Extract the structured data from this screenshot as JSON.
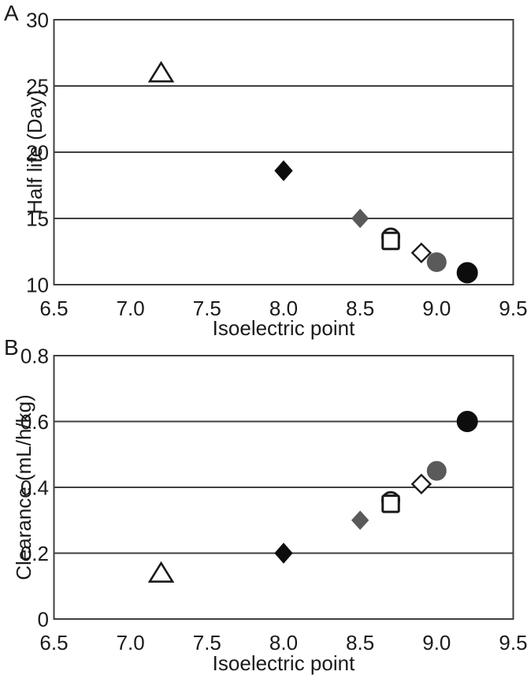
{
  "colors": {
    "black": "#0d0d0d",
    "gray": "#5a5a5a",
    "open_fill": "#ffffff",
    "axis": "#3f3f3f",
    "text": "#1a1a1a",
    "background": "#ffffff"
  },
  "chart_data": [
    {
      "type": "scatter",
      "panel_label": "A",
      "title": "",
      "xlabel": "Isoelectric point",
      "ylabel": "Half life (Day)",
      "xlim": [
        6.5,
        9.5
      ],
      "ylim": [
        10,
        30
      ],
      "xticks": [
        {
          "v": 6.5,
          "label": "6.5"
        },
        {
          "v": 7.0,
          "label": "7.0"
        },
        {
          "v": 7.5,
          "label": "7.5"
        },
        {
          "v": 8.0,
          "label": "8.0"
        },
        {
          "v": 8.5,
          "label": "8.5"
        },
        {
          "v": 9.0,
          "label": "9.0"
        },
        {
          "v": 9.5,
          "label": "9.5"
        }
      ],
      "yticks": [
        {
          "v": 10,
          "label": "10"
        },
        {
          "v": 15,
          "label": "15"
        },
        {
          "v": 20,
          "label": "20"
        },
        {
          "v": 25,
          "label": "25"
        },
        {
          "v": 30,
          "label": "30"
        }
      ],
      "grid": "horizontal",
      "legend": "none",
      "series": [
        {
          "name": "open-triangle",
          "marker": "triangle",
          "variant": "open",
          "points": [
            [
              7.2,
              26.0
            ]
          ]
        },
        {
          "name": "black-diamond",
          "marker": "diamond",
          "variant": "black",
          "points": [
            [
              8.0,
              18.6
            ]
          ]
        },
        {
          "name": "gray-diamond",
          "marker": "diamond",
          "variant": "gray",
          "points": [
            [
              8.5,
              15.0
            ]
          ]
        },
        {
          "name": "open-circle",
          "marker": "circle",
          "variant": "open",
          "points": [
            [
              8.7,
              13.6
            ]
          ]
        },
        {
          "name": "open-square",
          "marker": "square",
          "variant": "open",
          "points": [
            [
              8.7,
              13.3
            ]
          ]
        },
        {
          "name": "open-diamond",
          "marker": "diamond",
          "variant": "open",
          "points": [
            [
              8.9,
              12.4
            ]
          ]
        },
        {
          "name": "gray-circle",
          "marker": "circle",
          "variant": "gray",
          "points": [
            [
              9.0,
              11.7
            ]
          ]
        },
        {
          "name": "black-circle",
          "marker": "circle",
          "variant": "black",
          "points": [
            [
              9.2,
              10.9
            ]
          ]
        }
      ]
    },
    {
      "type": "scatter",
      "panel_label": "B",
      "title": "",
      "xlabel": "Isoelectric point",
      "ylabel": "Clearance (mL/h/kg)",
      "xlim": [
        6.5,
        9.5
      ],
      "ylim": [
        0,
        0.8
      ],
      "xticks": [
        {
          "v": 6.5,
          "label": "6.5"
        },
        {
          "v": 7.0,
          "label": "7.0"
        },
        {
          "v": 7.5,
          "label": "7.5"
        },
        {
          "v": 8.0,
          "label": "8.0"
        },
        {
          "v": 8.5,
          "label": "8.5"
        },
        {
          "v": 9.0,
          "label": "9.0"
        },
        {
          "v": 9.5,
          "label": "9.5"
        }
      ],
      "yticks": [
        {
          "v": 0.0,
          "label": "0"
        },
        {
          "v": 0.2,
          "label": "0.2"
        },
        {
          "v": 0.4,
          "label": "0.4"
        },
        {
          "v": 0.6,
          "label": "0.6"
        },
        {
          "v": 0.8,
          "label": "0.8"
        }
      ],
      "grid": "horizontal",
      "legend": "none",
      "series": [
        {
          "name": "open-triangle",
          "marker": "triangle",
          "variant": "open",
          "points": [
            [
              7.2,
              0.14
            ]
          ]
        },
        {
          "name": "black-diamond",
          "marker": "diamond",
          "variant": "black",
          "points": [
            [
              8.0,
              0.2
            ]
          ]
        },
        {
          "name": "gray-diamond",
          "marker": "diamond",
          "variant": "gray",
          "points": [
            [
              8.5,
              0.3
            ]
          ]
        },
        {
          "name": "open-circle",
          "marker": "circle",
          "variant": "open",
          "points": [
            [
              8.7,
              0.36
            ]
          ]
        },
        {
          "name": "open-square",
          "marker": "square",
          "variant": "open",
          "points": [
            [
              8.7,
              0.35
            ]
          ]
        },
        {
          "name": "open-diamond",
          "marker": "diamond",
          "variant": "open",
          "points": [
            [
              8.9,
              0.41
            ]
          ]
        },
        {
          "name": "gray-circle",
          "marker": "circle",
          "variant": "gray",
          "points": [
            [
              9.0,
              0.45
            ]
          ]
        },
        {
          "name": "black-circle",
          "marker": "circle",
          "variant": "black",
          "points": [
            [
              9.2,
              0.6
            ]
          ]
        }
      ]
    }
  ]
}
